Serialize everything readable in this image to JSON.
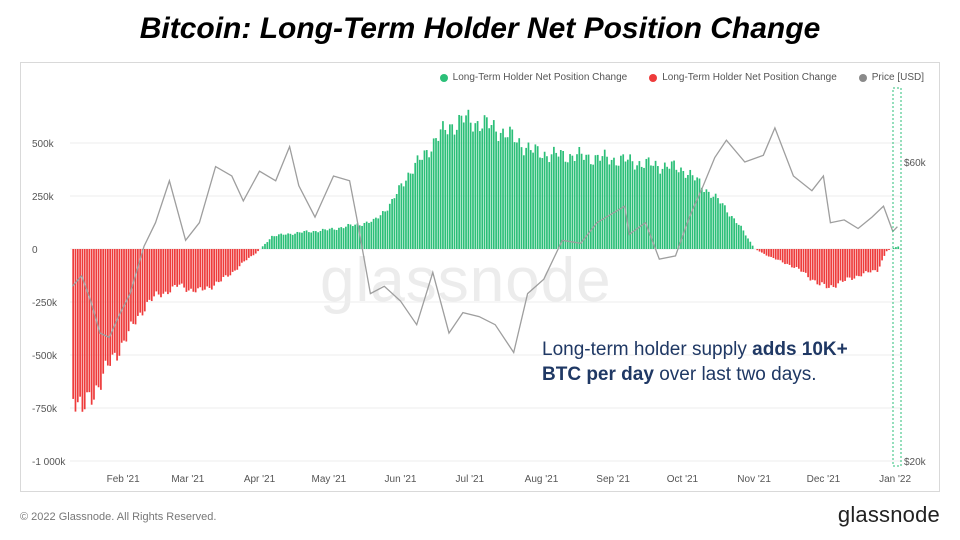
{
  "title": "Bitcoin: Long-Term Holder Net Position Change",
  "legend": {
    "positive": "Long-Term Holder Net Position Change",
    "negative": "Long-Term Holder Net Position Change",
    "price": "Price [USD]"
  },
  "watermark": "glassnode",
  "annotation": {
    "part1": "Long-term holder supply ",
    "bold1": "adds 10K+",
    "bold2": "BTC per day",
    "part2": " over last two days."
  },
  "footer": "© 2022 Glassnode. All Rights Reserved.",
  "logo": "glassnode",
  "colors": {
    "positive": "#2bbf78",
    "negative": "#ee3b3b",
    "price": "#9e9e9e",
    "grid": "#eeeeee"
  },
  "chart_data": {
    "type": "bar",
    "y_left": {
      "ticks": [
        "500k",
        "250k",
        "0",
        "-250k",
        "-500k",
        "-750k",
        "-1 000k"
      ],
      "values": [
        500000,
        250000,
        0,
        -250000,
        -500000,
        -750000,
        -1000000
      ],
      "range": [
        -1000000,
        600000
      ]
    },
    "y_right": {
      "ticks": [
        "$60k",
        "$20k"
      ],
      "values": [
        60000,
        20000
      ],
      "scale": "log"
    },
    "x_ticks": [
      "Feb '21",
      "Mar '21",
      "Apr '21",
      "May '21",
      "Jun '21",
      "Jul '21",
      "Aug '21",
      "Sep '21",
      "Oct '21",
      "Nov '21",
      "Dec '21",
      "Jan '22"
    ],
    "net_position_change": {
      "name": "Long-Term Holder Net Position Change",
      "points": [
        [
          "2021-01-10",
          -680000
        ],
        [
          "2021-01-14",
          -770000
        ],
        [
          "2021-01-18",
          -690000
        ],
        [
          "2021-01-22",
          -620000
        ],
        [
          "2021-01-26",
          -540000
        ],
        [
          "2021-01-30",
          -470000
        ],
        [
          "2021-02-03",
          -400000
        ],
        [
          "2021-02-07",
          -320000
        ],
        [
          "2021-02-11",
          -260000
        ],
        [
          "2021-02-15",
          -220000
        ],
        [
          "2021-02-20",
          -200000
        ],
        [
          "2021-02-25",
          -170000
        ],
        [
          "2021-03-01",
          -190000
        ],
        [
          "2021-03-05",
          -200000
        ],
        [
          "2021-03-10",
          -180000
        ],
        [
          "2021-03-15",
          -150000
        ],
        [
          "2021-03-20",
          -110000
        ],
        [
          "2021-03-25",
          -60000
        ],
        [
          "2021-03-30",
          -20000
        ],
        [
          "2021-04-01",
          0
        ],
        [
          "2021-04-06",
          60000
        ],
        [
          "2021-04-12",
          70000
        ],
        [
          "2021-04-20",
          80000
        ],
        [
          "2021-04-30",
          90000
        ],
        [
          "2021-05-10",
          110000
        ],
        [
          "2021-05-20",
          130000
        ],
        [
          "2021-05-28",
          220000
        ],
        [
          "2021-06-03",
          340000
        ],
        [
          "2021-06-10",
          430000
        ],
        [
          "2021-06-16",
          520000
        ],
        [
          "2021-06-22",
          580000
        ],
        [
          "2021-06-28",
          610000
        ],
        [
          "2021-07-05",
          595000
        ],
        [
          "2021-07-12",
          570000
        ],
        [
          "2021-07-20",
          520000
        ],
        [
          "2021-07-28",
          460000
        ],
        [
          "2021-08-05",
          445000
        ],
        [
          "2021-08-15",
          440000
        ],
        [
          "2021-08-25",
          430000
        ],
        [
          "2021-09-05",
          420000
        ],
        [
          "2021-09-15",
          400000
        ],
        [
          "2021-09-25",
          390000
        ],
        [
          "2021-10-02",
          370000
        ],
        [
          "2021-10-10",
          290000
        ],
        [
          "2021-10-18",
          210000
        ],
        [
          "2021-10-26",
          100000
        ],
        [
          "2021-11-01",
          0
        ],
        [
          "2021-11-08",
          -40000
        ],
        [
          "2021-11-15",
          -70000
        ],
        [
          "2021-11-22",
          -110000
        ],
        [
          "2021-11-29",
          -170000
        ],
        [
          "2021-12-03",
          -180000
        ],
        [
          "2021-12-10",
          -150000
        ],
        [
          "2021-12-17",
          -120000
        ],
        [
          "2021-12-24",
          -100000
        ],
        [
          "2021-12-28",
          -10000
        ],
        [
          "2021-12-31",
          5000
        ],
        [
          "2022-01-02",
          12000
        ]
      ]
    },
    "price": {
      "name": "Price [USD]",
      "points": [
        [
          "2021-01-10",
          38000
        ],
        [
          "2021-01-14",
          39500
        ],
        [
          "2021-01-18",
          36000
        ],
        [
          "2021-01-22",
          32000
        ],
        [
          "2021-01-26",
          31500
        ],
        [
          "2021-01-30",
          34000
        ],
        [
          "2021-02-04",
          37000
        ],
        [
          "2021-02-10",
          44000
        ],
        [
          "2021-02-15",
          48000
        ],
        [
          "2021-02-21",
          56000
        ],
        [
          "2021-02-28",
          45000
        ],
        [
          "2021-03-06",
          48000
        ],
        [
          "2021-03-13",
          59000
        ],
        [
          "2021-03-20",
          57000
        ],
        [
          "2021-03-25",
          52000
        ],
        [
          "2021-04-01",
          58000
        ],
        [
          "2021-04-08",
          56000
        ],
        [
          "2021-04-14",
          63500
        ],
        [
          "2021-04-18",
          55000
        ],
        [
          "2021-04-25",
          49000
        ],
        [
          "2021-05-03",
          57000
        ],
        [
          "2021-05-10",
          56000
        ],
        [
          "2021-05-13",
          49000
        ],
        [
          "2021-05-19",
          37000
        ],
        [
          "2021-05-25",
          38000
        ],
        [
          "2021-06-01",
          36000
        ],
        [
          "2021-06-08",
          33000
        ],
        [
          "2021-06-15",
          40000
        ],
        [
          "2021-06-22",
          32000
        ],
        [
          "2021-06-28",
          34500
        ],
        [
          "2021-07-05",
          34000
        ],
        [
          "2021-07-12",
          33000
        ],
        [
          "2021-07-20",
          29800
        ],
        [
          "2021-07-26",
          37000
        ],
        [
          "2021-08-02",
          39000
        ],
        [
          "2021-08-10",
          45000
        ],
        [
          "2021-08-18",
          44500
        ],
        [
          "2021-08-25",
          48000
        ],
        [
          "2021-09-06",
          51000
        ],
        [
          "2021-09-08",
          46000
        ],
        [
          "2021-09-15",
          48000
        ],
        [
          "2021-09-21",
          42000
        ],
        [
          "2021-09-28",
          42500
        ],
        [
          "2021-10-04",
          49000
        ],
        [
          "2021-10-10",
          55000
        ],
        [
          "2021-10-15",
          61000
        ],
        [
          "2021-10-20",
          65000
        ],
        [
          "2021-10-28",
          60000
        ],
        [
          "2021-11-05",
          61500
        ],
        [
          "2021-11-10",
          68000
        ],
        [
          "2021-11-18",
          57000
        ],
        [
          "2021-11-26",
          54000
        ],
        [
          "2021-12-01",
          57000
        ],
        [
          "2021-12-04",
          48000
        ],
        [
          "2021-12-10",
          48500
        ],
        [
          "2021-12-16",
          47000
        ],
        [
          "2021-12-22",
          49000
        ],
        [
          "2021-12-27",
          51000
        ],
        [
          "2021-12-31",
          46500
        ],
        [
          "2022-01-02",
          47300
        ]
      ]
    }
  }
}
